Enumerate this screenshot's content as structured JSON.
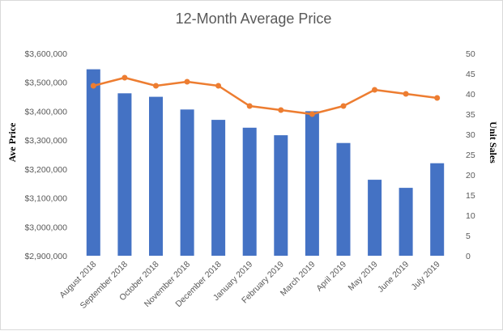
{
  "chart_data": {
    "type": "bar",
    "title": "12-Month Average Price",
    "categories": [
      "August 2018",
      "September 2018",
      "October 2018",
      "November 2018",
      "December 2018",
      "January 2019",
      "February 2019",
      "March 2019",
      "April 2019",
      "May 2019",
      "June 2019",
      "July 2019"
    ],
    "series": [
      {
        "name": "Ave Price",
        "type": "bar",
        "axis": "left",
        "color": "#4472c4",
        "values": [
          3545000,
          3462000,
          3450000,
          3406000,
          3370000,
          3343000,
          3317000,
          3400000,
          3290000,
          3163000,
          3135000,
          3220000
        ]
      },
      {
        "name": "Unit Sales",
        "type": "line",
        "axis": "right",
        "color": "#ed7d31",
        "values": [
          42,
          44,
          42,
          43,
          42,
          37,
          36,
          35,
          37,
          41,
          40,
          39
        ]
      }
    ],
    "ylabel": "Ave Price",
    "y2label": "Unit Sales",
    "ylim": [
      2900000,
      3600000
    ],
    "y2lim": [
      0,
      50
    ],
    "yticks": [
      "$2,900,000",
      "$3,000,000",
      "$3,100,000",
      "$3,200,000",
      "$3,300,000",
      "$3,400,000",
      "$3,500,000",
      "$3,600,000"
    ],
    "y2ticks": [
      "0",
      "5",
      "10",
      "15",
      "20",
      "25",
      "30",
      "35",
      "40",
      "45",
      "50"
    ],
    "grid": false,
    "legend": "none"
  }
}
